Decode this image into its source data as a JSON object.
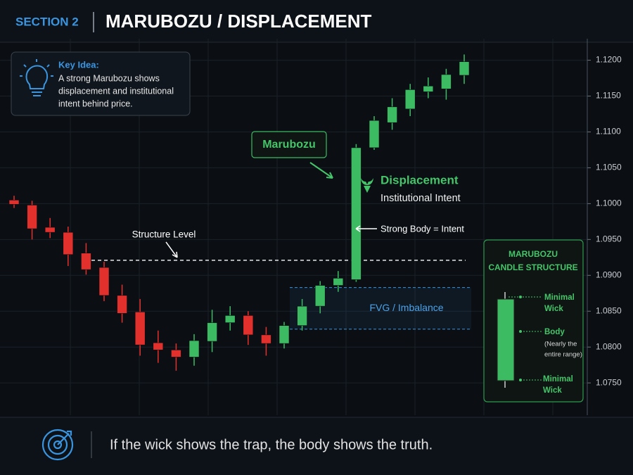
{
  "header": {
    "section": "SECTION 2",
    "title": "MARUBOZU / DISPLACEMENT"
  },
  "key_idea": {
    "heading": "Key Idea:",
    "lines": [
      "A strong Marubozu shows",
      "displacement and institutional",
      "intent behind price."
    ]
  },
  "chart_data": {
    "type": "candlestick",
    "open": [
      1.1005,
      1.0998,
      1.0967,
      1.096,
      1.0931,
      1.0911,
      1.0872,
      1.0849,
      1.0806,
      1.0796,
      1.0786,
      1.0808,
      1.0834,
      1.0844,
      1.0817,
      1.0805,
      1.083,
      1.0857,
      1.0886,
      1.0894,
      1.1078,
      1.1113,
      1.1132,
      1.1156,
      1.116,
      1.1179
    ],
    "high": [
      1.1011,
      1.1004,
      1.098,
      1.0968,
      1.0945,
      1.0919,
      1.0887,
      1.0867,
      1.0823,
      1.0805,
      1.0818,
      1.0852,
      1.0857,
      1.085,
      1.0828,
      1.0835,
      1.0867,
      1.0892,
      1.0906,
      1.1083,
      1.1122,
      1.1147,
      1.1167,
      1.1176,
      1.1188,
      1.1208
    ],
    "low": [
      1.0994,
      1.095,
      1.0952,
      1.0913,
      1.0901,
      1.0864,
      1.0834,
      1.0788,
      1.0778,
      1.0767,
      1.0774,
      1.0793,
      1.0823,
      1.0803,
      1.0788,
      1.0798,
      1.0823,
      1.0847,
      1.0877,
      1.0891,
      1.1075,
      1.1103,
      1.1122,
      1.1147,
      1.1145,
      1.1167
    ],
    "close": [
      1.0999,
      1.0965,
      1.096,
      1.0929,
      1.0908,
      1.0872,
      1.0847,
      1.0803,
      1.0796,
      1.0786,
      1.0809,
      1.0834,
      1.0844,
      1.0817,
      1.0805,
      1.083,
      1.0857,
      1.0886,
      1.0896,
      1.1078,
      1.1116,
      1.1135,
      1.1159,
      1.1164,
      1.118,
      1.1198
    ],
    "up_color": "#3dbb63",
    "down_color": "#e2302c",
    "ylim": [
      1.0705,
      1.123
    ],
    "yticks": [
      {
        "value": 1.075,
        "label": "1.0750"
      },
      {
        "value": 1.08,
        "label": "1.0800"
      },
      {
        "value": 1.085,
        "label": "1.0850"
      },
      {
        "value": 1.09,
        "label": "1.0900"
      },
      {
        "value": 1.095,
        "label": "1.0950"
      },
      {
        "value": 1.1,
        "label": "1.1000"
      },
      {
        "value": 1.105,
        "label": "1.1050"
      },
      {
        "value": 1.11,
        "label": "1.1100"
      },
      {
        "value": 1.115,
        "label": "1.1150"
      },
      {
        "value": 1.12,
        "label": "1.1200"
      }
    ],
    "grid": true,
    "structure_level": {
      "label": "Structure Level",
      "value": 1.0921
    },
    "fvg": {
      "label": "FVG / Imbalance",
      "low": 1.0825,
      "high": 1.0883
    },
    "marubozu_label": "Marubozu",
    "displacement": {
      "title": "Displacement",
      "subtitle": "Institutional Intent"
    },
    "strong_body": "Strong Body = Intent"
  },
  "structure_box": {
    "title": [
      "MARUBOZU",
      "CANDLE STRUCTURE"
    ],
    "top_label": [
      "Minimal",
      "Wick"
    ],
    "body_label": "Body",
    "body_note": [
      "(Nearly the",
      "entire range)"
    ],
    "bottom_label": [
      "Minimal",
      "Wick"
    ]
  },
  "footer": {
    "quote": "If the wick shows the trap, the body shows the truth."
  }
}
